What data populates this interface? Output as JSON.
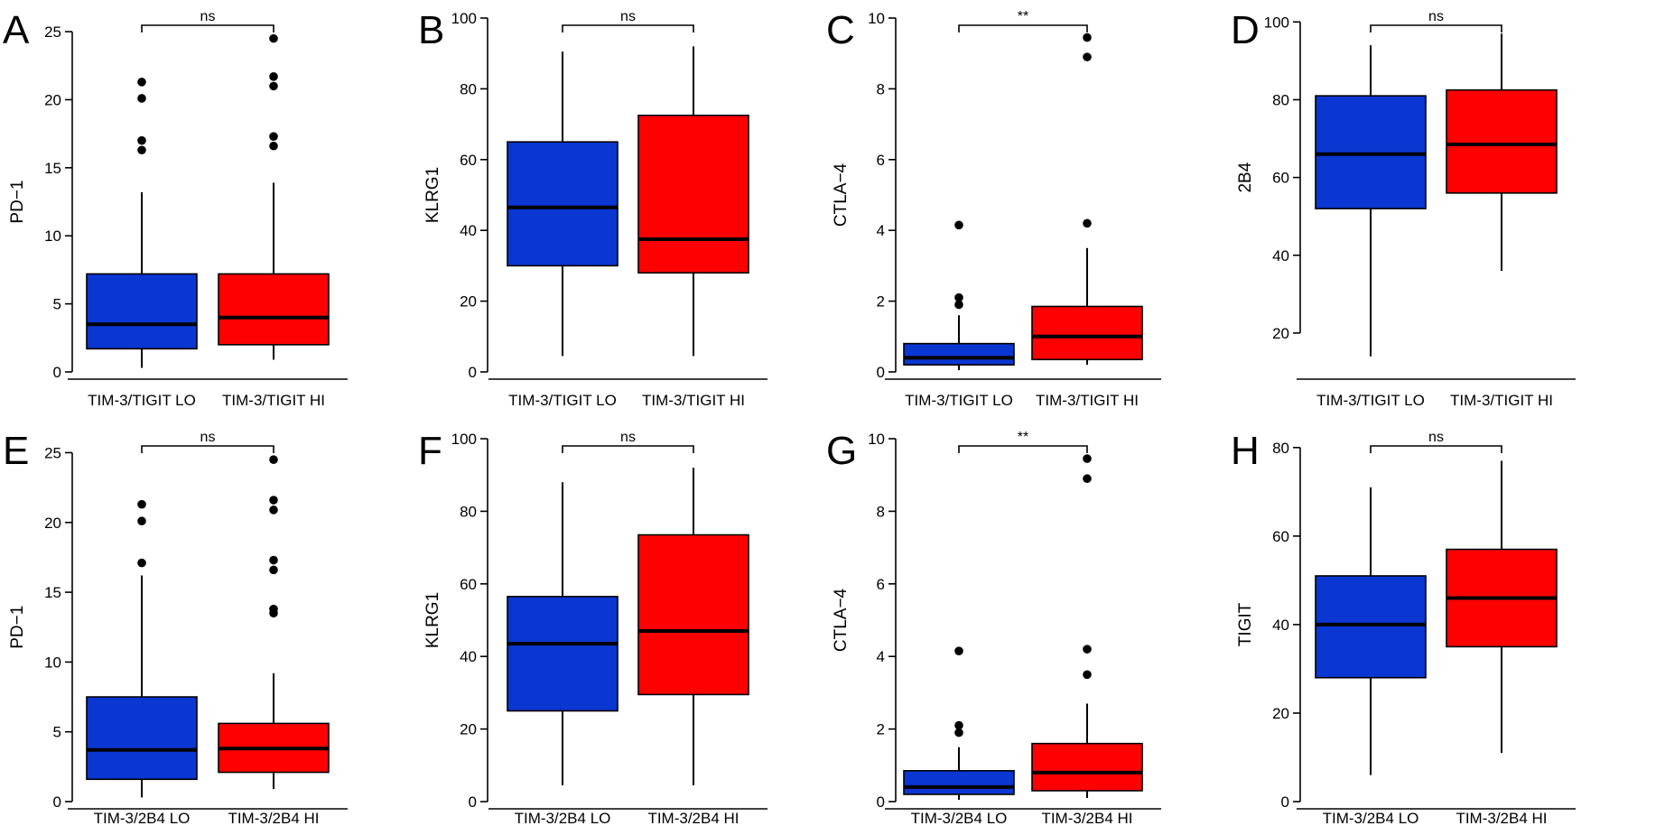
{
  "colors": {
    "lo": "#0a37d2",
    "hi": "#ff0000",
    "axis": "#000000"
  },
  "chart_data": [
    {
      "panel": "A",
      "type": "box",
      "ylabel": "PD−1",
      "categories": [
        "TIM-3/TIGIT LO",
        "TIM-3/TIGIT HI"
      ],
      "ylim": [
        0,
        26
      ],
      "yticks": [
        "0",
        "5",
        "10",
        "15",
        "20",
        "25"
      ],
      "significance": "ns",
      "boxes": [
        {
          "min": 0.3,
          "q1": 1.7,
          "median": 3.5,
          "q3": 7.2,
          "max": 13.2,
          "outliers": [
            16.3,
            17.0,
            20.1,
            21.3
          ]
        },
        {
          "min": 0.9,
          "q1": 2.0,
          "median": 4.0,
          "q3": 7.2,
          "max": 13.9,
          "outliers": [
            16.6,
            17.3,
            21.0,
            21.7,
            24.5
          ]
        }
      ]
    },
    {
      "panel": "B",
      "type": "box",
      "ylabel": "KLRG1",
      "categories": [
        "TIM-3/TIGIT LO",
        "TIM-3/TIGIT HI"
      ],
      "ylim": [
        0,
        100
      ],
      "yticks": [
        "0",
        "20",
        "40",
        "60",
        "80",
        "100"
      ],
      "significance": "ns",
      "boxes": [
        {
          "min": 4.5,
          "q1": 30,
          "median": 46.5,
          "q3": 65,
          "max": 90.5,
          "outliers": []
        },
        {
          "min": 4.5,
          "q1": 28,
          "median": 37.5,
          "q3": 72.5,
          "max": 92,
          "outliers": []
        }
      ]
    },
    {
      "panel": "C",
      "type": "box",
      "ylabel": "CTLA−4",
      "categories": [
        "TIM-3/TIGIT LO",
        "TIM-3/TIGIT HI"
      ],
      "ylim": [
        0,
        10
      ],
      "yticks": [
        "0",
        "2",
        "4",
        "6",
        "8",
        "10"
      ],
      "significance": "**",
      "boxes": [
        {
          "min": 0.05,
          "q1": 0.2,
          "median": 0.4,
          "q3": 0.8,
          "max": 1.6,
          "outliers": [
            1.9,
            2.1,
            4.15
          ]
        },
        {
          "min": 0.2,
          "q1": 0.35,
          "median": 1.0,
          "q3": 1.85,
          "max": 3.5,
          "outliers": [
            4.2,
            8.9,
            9.45
          ]
        }
      ]
    },
    {
      "panel": "D",
      "type": "box",
      "ylabel": "2B4",
      "categories": [
        "TIM-3/TIGIT LO",
        "TIM-3/TIGIT HI"
      ],
      "ylim": [
        10,
        101
      ],
      "yticks": [
        "20",
        "40",
        "60",
        "80",
        "100"
      ],
      "significance": "ns",
      "boxes": [
        {
          "min": 14,
          "q1": 52,
          "median": 66,
          "q3": 81,
          "max": 94,
          "outliers": []
        },
        {
          "min": 36,
          "q1": 56,
          "median": 68.5,
          "q3": 82.5,
          "max": 97,
          "outliers": []
        }
      ]
    },
    {
      "panel": "E",
      "type": "box",
      "ylabel": "PD−1",
      "categories": [
        "TIM-3/2B4 LO",
        "TIM-3/2B4 HI"
      ],
      "ylim": [
        0,
        26
      ],
      "yticks": [
        "0",
        "5",
        "10",
        "15",
        "20",
        "25"
      ],
      "significance": "ns",
      "boxes": [
        {
          "min": 0.3,
          "q1": 1.6,
          "median": 3.7,
          "q3": 7.5,
          "max": 16.2,
          "outliers": [
            17.1,
            20.1,
            21.3
          ]
        },
        {
          "min": 0.9,
          "q1": 2.1,
          "median": 3.8,
          "q3": 5.6,
          "max": 9.2,
          "outliers": [
            13.5,
            13.8,
            16.6,
            17.3,
            20.9,
            21.6,
            24.5
          ]
        }
      ]
    },
    {
      "panel": "F",
      "type": "box",
      "ylabel": "KLRG1",
      "categories": [
        "TIM-3/2B4 LO",
        "TIM-3/2B4 HI"
      ],
      "ylim": [
        0,
        100
      ],
      "yticks": [
        "0",
        "20",
        "40",
        "60",
        "80",
        "100"
      ],
      "significance": "ns",
      "boxes": [
        {
          "min": 4.5,
          "q1": 25,
          "median": 43.5,
          "q3": 56.5,
          "max": 88,
          "outliers": []
        },
        {
          "min": 4.5,
          "q1": 29.5,
          "median": 47,
          "q3": 73.5,
          "max": 92,
          "outliers": []
        }
      ]
    },
    {
      "panel": "G",
      "type": "box",
      "ylabel": "CTLA−4",
      "categories": [
        "TIM-3/2B4 LO",
        "TIM-3/2B4 HI"
      ],
      "ylim": [
        0,
        10
      ],
      "yticks": [
        "0",
        "2",
        "4",
        "6",
        "8",
        "10"
      ],
      "significance": "**",
      "boxes": [
        {
          "min": 0.05,
          "q1": 0.2,
          "median": 0.4,
          "q3": 0.85,
          "max": 1.5,
          "outliers": [
            1.9,
            2.1,
            4.15
          ]
        },
        {
          "min": 0.1,
          "q1": 0.3,
          "median": 0.8,
          "q3": 1.6,
          "max": 2.7,
          "outliers": [
            3.5,
            4.2,
            8.9,
            9.45
          ]
        }
      ]
    },
    {
      "panel": "H",
      "type": "box",
      "ylabel": "TIGIT",
      "categories": [
        "TIM-3/2B4 LO",
        "TIM-3/2B4 HI"
      ],
      "ylim": [
        0,
        82
      ],
      "yticks": [
        "0",
        "20",
        "40",
        "60",
        "80"
      ],
      "significance": "ns",
      "boxes": [
        {
          "min": 6,
          "q1": 28,
          "median": 40,
          "q3": 51,
          "max": 71,
          "outliers": []
        },
        {
          "min": 11,
          "q1": 35,
          "median": 46,
          "q3": 57,
          "max": 77,
          "outliers": []
        }
      ]
    }
  ]
}
